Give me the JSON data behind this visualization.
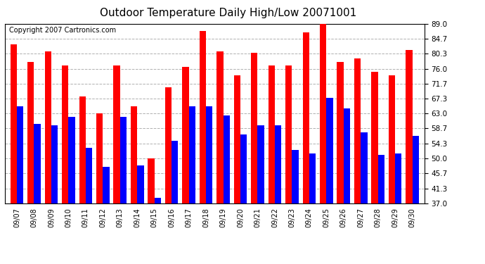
{
  "title": "Outdoor Temperature Daily High/Low 20071001",
  "copyright": "Copyright 2007 Cartronics.com",
  "dates": [
    "09/07",
    "09/08",
    "09/09",
    "09/10",
    "09/11",
    "09/12",
    "09/13",
    "09/14",
    "09/15",
    "09/16",
    "09/17",
    "09/18",
    "09/19",
    "09/20",
    "09/21",
    "09/22",
    "09/23",
    "09/24",
    "09/25",
    "09/26",
    "09/27",
    "09/28",
    "09/29",
    "09/30"
  ],
  "highs": [
    83.0,
    78.0,
    81.0,
    77.0,
    68.0,
    63.0,
    77.0,
    65.0,
    50.0,
    70.5,
    76.5,
    87.0,
    81.0,
    74.0,
    80.5,
    77.0,
    77.0,
    86.5,
    89.5,
    78.0,
    79.0,
    75.0,
    74.0,
    81.5
  ],
  "lows": [
    65.0,
    60.0,
    59.5,
    62.0,
    53.0,
    47.5,
    62.0,
    48.0,
    38.5,
    55.0,
    65.0,
    65.0,
    62.5,
    57.0,
    59.5,
    59.5,
    52.5,
    51.5,
    67.5,
    64.5,
    57.5,
    51.0,
    51.5,
    56.5
  ],
  "high_color": "#ff0000",
  "low_color": "#0000ff",
  "bg_color": "#ffffff",
  "grid_color": "#b0b0b0",
  "ylim": [
    37.0,
    89.0
  ],
  "yticks": [
    37.0,
    41.3,
    45.7,
    50.0,
    54.3,
    58.7,
    63.0,
    67.3,
    71.7,
    76.0,
    80.3,
    84.7,
    89.0
  ],
  "title_fontsize": 11,
  "copyright_fontsize": 7,
  "bar_width": 0.38
}
